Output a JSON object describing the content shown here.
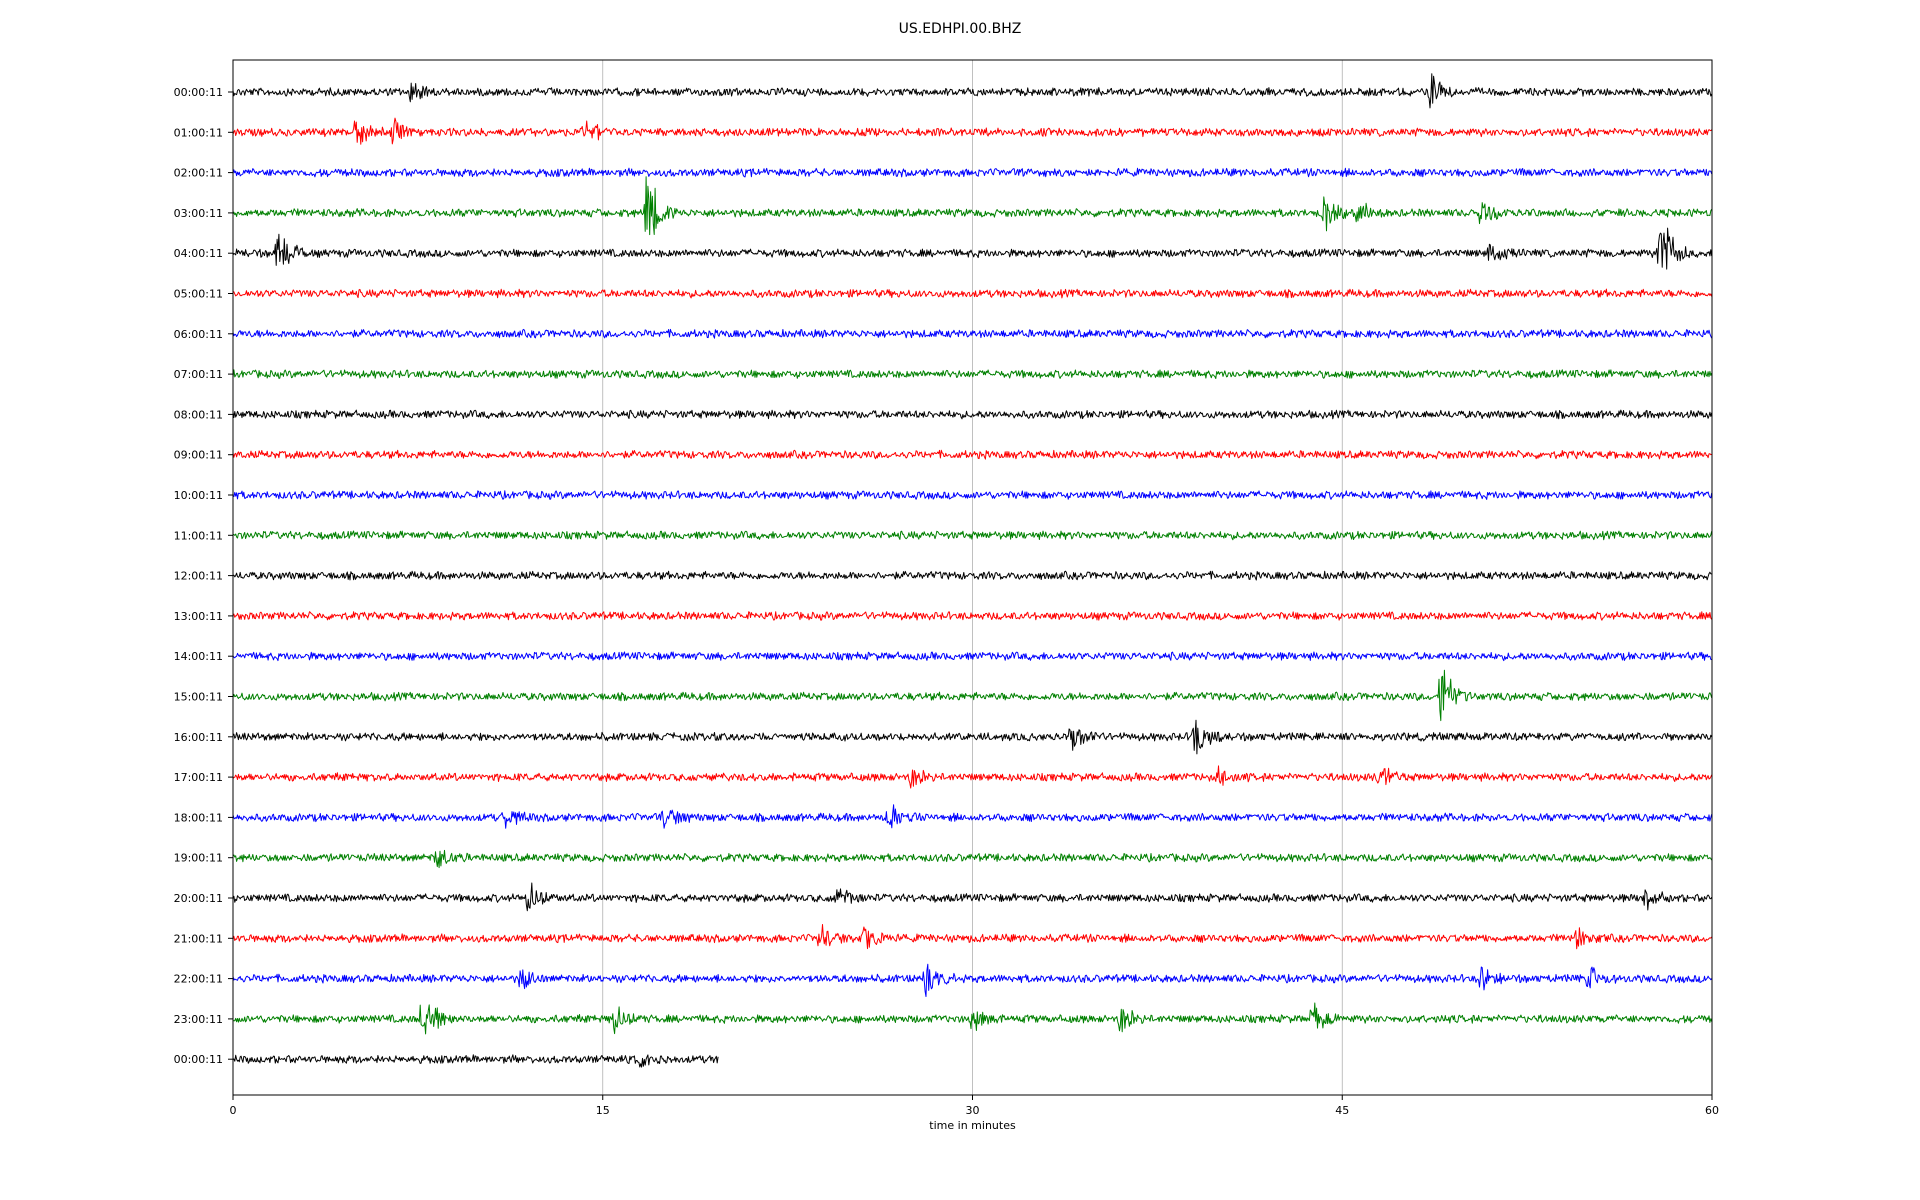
{
  "chart_data": {
    "type": "line",
    "title": "US.EDHPI.00.BHZ",
    "xlabel": "time in minutes",
    "ylabel": "",
    "xlim": [
      0,
      60
    ],
    "x_ticks": [
      "0",
      "15",
      "30",
      "45",
      "60"
    ],
    "x_tick_values": [
      0,
      15,
      30,
      45,
      60
    ],
    "grid": "vertical",
    "color_cycle": [
      "#000000",
      "#ff0000",
      "#0000ff",
      "#008000"
    ],
    "traces": [
      {
        "label": "00:00:11",
        "color": "#000000",
        "end_min": 60,
        "events": [
          {
            "t": 7.2,
            "amp": 0.35
          },
          {
            "t": 48.6,
            "amp": 0.5
          }
        ]
      },
      {
        "label": "01:00:11",
        "color": "#ff0000",
        "end_min": 60,
        "events": [
          {
            "t": 5.0,
            "amp": 0.6
          },
          {
            "t": 6.5,
            "amp": 0.5
          },
          {
            "t": 14.3,
            "amp": 0.45
          }
        ]
      },
      {
        "label": "02:00:11",
        "color": "#0000ff",
        "end_min": 60,
        "events": []
      },
      {
        "label": "03:00:11",
        "color": "#008000",
        "end_min": 60,
        "events": [
          {
            "t": 16.8,
            "amp": 1.5
          },
          {
            "t": 44.3,
            "amp": 0.6
          },
          {
            "t": 45.6,
            "amp": 0.45
          },
          {
            "t": 50.6,
            "amp": 0.5
          }
        ]
      },
      {
        "label": "04:00:11",
        "color": "#000000",
        "end_min": 60,
        "events": [
          {
            "t": 1.8,
            "amp": 0.9
          },
          {
            "t": 51.0,
            "amp": 0.35
          },
          {
            "t": 57.9,
            "amp": 1.8
          }
        ]
      },
      {
        "label": "05:00:11",
        "color": "#ff0000",
        "end_min": 60,
        "events": []
      },
      {
        "label": "06:00:11",
        "color": "#0000ff",
        "end_min": 60,
        "events": []
      },
      {
        "label": "07:00:11",
        "color": "#008000",
        "end_min": 60,
        "events": []
      },
      {
        "label": "08:00:11",
        "color": "#000000",
        "end_min": 60,
        "events": []
      },
      {
        "label": "09:00:11",
        "color": "#ff0000",
        "end_min": 60,
        "events": []
      },
      {
        "label": "10:00:11",
        "color": "#0000ff",
        "end_min": 60,
        "events": []
      },
      {
        "label": "11:00:11",
        "color": "#008000",
        "end_min": 60,
        "events": []
      },
      {
        "label": "12:00:11",
        "color": "#000000",
        "end_min": 60,
        "events": []
      },
      {
        "label": "13:00:11",
        "color": "#ff0000",
        "end_min": 60,
        "events": []
      },
      {
        "label": "14:00:11",
        "color": "#0000ff",
        "end_min": 60,
        "events": []
      },
      {
        "label": "15:00:11",
        "color": "#008000",
        "end_min": 60,
        "events": [
          {
            "t": 49.0,
            "amp": 1.3
          }
        ]
      },
      {
        "label": "16:00:11",
        "color": "#000000",
        "end_min": 60,
        "events": [
          {
            "t": 34.0,
            "amp": 0.5
          },
          {
            "t": 39.0,
            "amp": 0.9
          }
        ]
      },
      {
        "label": "17:00:11",
        "color": "#ff0000",
        "end_min": 60,
        "events": [
          {
            "t": 27.5,
            "amp": 0.35
          },
          {
            "t": 40.0,
            "amp": 0.35
          },
          {
            "t": 46.5,
            "amp": 0.45
          }
        ]
      },
      {
        "label": "18:00:11",
        "color": "#0000ff",
        "end_min": 60,
        "events": [
          {
            "t": 11.0,
            "amp": 0.35
          },
          {
            "t": 17.5,
            "amp": 0.4
          },
          {
            "t": 26.6,
            "amp": 0.55
          }
        ]
      },
      {
        "label": "19:00:11",
        "color": "#008000",
        "end_min": 60,
        "events": [
          {
            "t": 8.3,
            "amp": 0.4
          }
        ]
      },
      {
        "label": "20:00:11",
        "color": "#000000",
        "end_min": 60,
        "events": [
          {
            "t": 12.0,
            "amp": 0.55
          },
          {
            "t": 24.5,
            "amp": 0.4
          },
          {
            "t": 57.2,
            "amp": 0.45
          }
        ]
      },
      {
        "label": "21:00:11",
        "color": "#ff0000",
        "end_min": 60,
        "events": [
          {
            "t": 23.8,
            "amp": 0.5
          },
          {
            "t": 25.6,
            "amp": 0.45
          },
          {
            "t": 54.5,
            "amp": 0.35
          }
        ]
      },
      {
        "label": "22:00:11",
        "color": "#0000ff",
        "end_min": 60,
        "events": [
          {
            "t": 11.7,
            "amp": 0.4
          },
          {
            "t": 28.1,
            "amp": 0.5
          },
          {
            "t": 50.6,
            "amp": 0.4
          },
          {
            "t": 55.0,
            "amp": 0.4
          }
        ]
      },
      {
        "label": "23:00:11",
        "color": "#008000",
        "end_min": 60,
        "events": [
          {
            "t": 7.7,
            "amp": 1.3
          },
          {
            "t": 15.5,
            "amp": 0.45
          },
          {
            "t": 30.0,
            "amp": 0.4
          },
          {
            "t": 36.0,
            "amp": 0.5
          },
          {
            "t": 43.8,
            "amp": 0.5
          }
        ]
      },
      {
        "label": "00:00:11",
        "color": "#000000",
        "end_min": 19.7,
        "events": [
          {
            "t": 16.5,
            "amp": 0.3
          }
        ]
      }
    ]
  }
}
